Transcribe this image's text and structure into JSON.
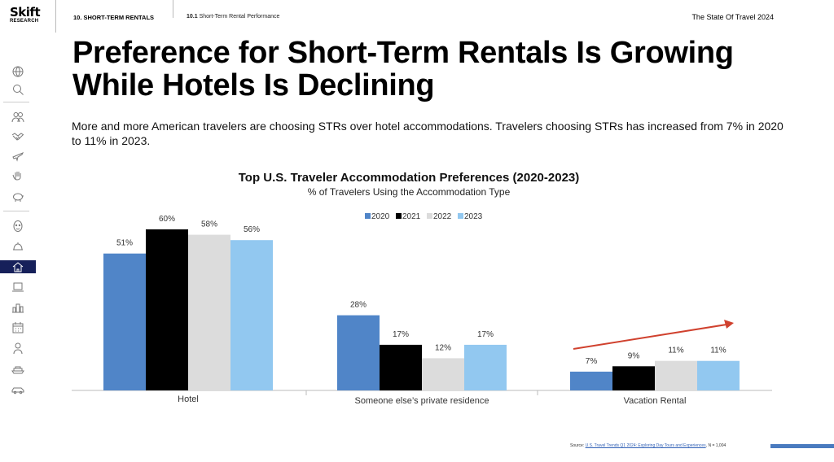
{
  "header": {
    "logo_line1": "Skift",
    "logo_line2": "RESEARCH",
    "section": "10. SHORT-TERM RENTALS",
    "subsection_num": "10.1",
    "subsection_title": "Short-Term Rental Performance",
    "report": "The State Of Travel 2024"
  },
  "sidebar": {
    "icons": [
      "globe-icon",
      "magnifier-icon",
      "people-icon",
      "handshake-icon",
      "airplane-icon",
      "hand-icon",
      "piggy-bank-icon",
      "face-icon",
      "cloche-icon",
      "house-icon",
      "laptop-icon",
      "city-icon",
      "calendar-icon",
      "person-icon",
      "ship-icon",
      "car-icon"
    ],
    "active_icon": "house-icon",
    "colors": {
      "icon": "#777777",
      "active_bg": "#16205a",
      "active_icon": "#ffffff"
    }
  },
  "page": {
    "title": "Preference for Short-Term Rentals Is Growing While Hotels Is Declining",
    "description": "More and more American travelers are choosing STRs over hotel accommodations. Travelers choosing STRs has increased from 7% in 2020 to 11% in 2023."
  },
  "chart_data": {
    "type": "bar",
    "title": "Top U.S. Traveler Accommodation Preferences (2020-2023)",
    "subtitle": "% of Travelers Using the Accommodation Type",
    "categories": [
      "Hotel",
      "Someone else’s private residence",
      "Vacation Rental"
    ],
    "series": [
      {
        "name": "2020",
        "color": "#5085c8",
        "values": [
          51,
          28,
          7
        ]
      },
      {
        "name": "2021",
        "color": "#000000",
        "values": [
          60,
          17,
          9
        ]
      },
      {
        "name": "2022",
        "color": "#dcdcdc",
        "values": [
          58,
          12,
          11
        ]
      },
      {
        "name": "2023",
        "color": "#92c8f0",
        "values": [
          56,
          17,
          11
        ]
      }
    ],
    "value_suffix": "%",
    "ylim": [
      0,
      70
    ],
    "grid": false,
    "legend_position": "top",
    "annotations": [
      {
        "type": "trend-arrow",
        "category": "Vacation Rental",
        "color": "#d0412e"
      }
    ]
  },
  "footer": {
    "source_prefix": "Source:",
    "source_link": "U.S. Travel Trends Q1 2024: Exploring Day Tours and Experiences",
    "source_suffix": ", N = 1,004",
    "accent_color": "#4a7bbf"
  }
}
